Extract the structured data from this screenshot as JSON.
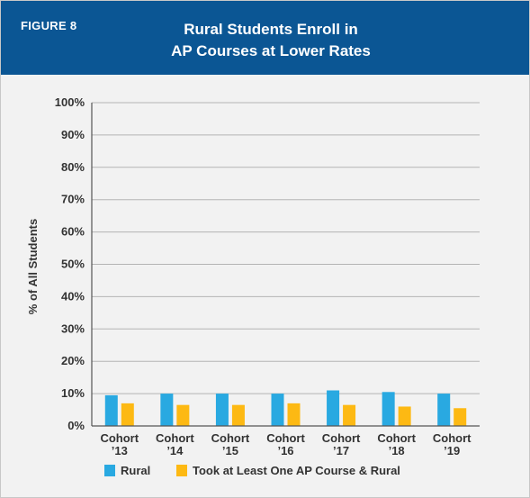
{
  "figure_label": "FIGURE 8",
  "title_lines": [
    "Rural Students Enroll in",
    "AP Courses at Lower Rates"
  ],
  "colors": {
    "header": "#0b5694",
    "rural": "#29a9e1",
    "ap_rural": "#fdb913",
    "grid": "#b4b4b4",
    "background": "#f2f2f2"
  },
  "chart_data": {
    "type": "bar",
    "title": "Rural Students Enroll in AP Courses at Lower Rates",
    "ylabel": "% of All Students",
    "xlabel": "",
    "ylim": [
      0,
      100
    ],
    "yticks": [
      0,
      10,
      20,
      30,
      40,
      50,
      60,
      70,
      80,
      90,
      100
    ],
    "ytick_labels": [
      "0%",
      "10%",
      "20%",
      "30%",
      "40%",
      "50%",
      "60%",
      "70%",
      "80%",
      "90%",
      "100%"
    ],
    "categories": [
      [
        "Cohort",
        "’13"
      ],
      [
        "Cohort",
        "’14"
      ],
      [
        "Cohort",
        "’15"
      ],
      [
        "Cohort",
        "’16"
      ],
      [
        "Cohort",
        "’17"
      ],
      [
        "Cohort",
        "’18"
      ],
      [
        "Cohort",
        "’19"
      ]
    ],
    "series": [
      {
        "name": "Rural",
        "color": "#29a9e1",
        "values": [
          9.5,
          10,
          10,
          10,
          11,
          10.5,
          10
        ]
      },
      {
        "name": "Took at Least One AP Course & Rural",
        "color": "#fdb913",
        "values": [
          7,
          6.5,
          6.5,
          7,
          6.5,
          6,
          5.5
        ]
      }
    ],
    "grid": true,
    "legend_position": "bottom"
  }
}
